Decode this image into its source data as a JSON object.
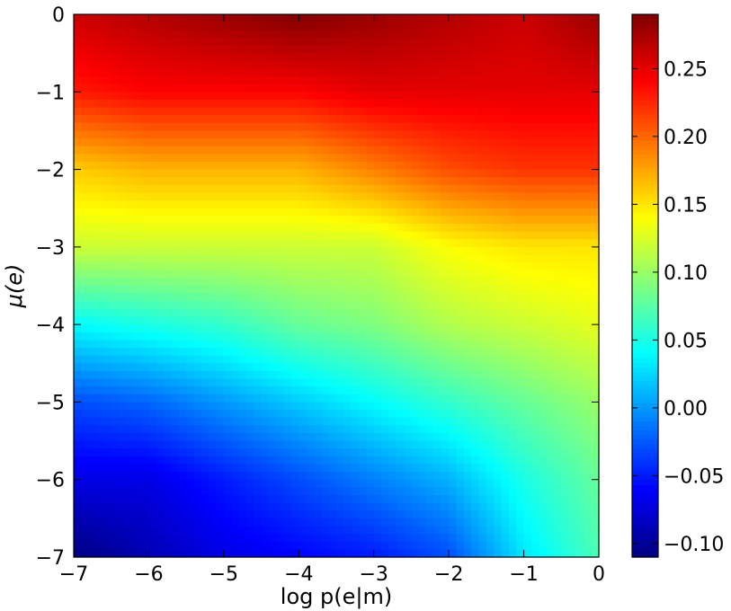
{
  "chart_data": {
    "type": "heatmap",
    "title": "",
    "xlabel": "log p(e|m)",
    "ylabel": "μ(e)",
    "xlim": [
      -7,
      0
    ],
    "ylim": [
      -7,
      0
    ],
    "x_ticks": [
      -7,
      -6,
      -5,
      -4,
      -3,
      -2,
      -1,
      0
    ],
    "y_ticks": [
      -7,
      -6,
      -5,
      -4,
      -3,
      -2,
      -1,
      0
    ],
    "x_tick_labels": [
      "−7",
      "−6",
      "−5",
      "−4",
      "−3",
      "−2",
      "−1",
      "0"
    ],
    "y_tick_labels": [
      "−7",
      "−6",
      "−5",
      "−4",
      "−3",
      "−2",
      "−1",
      "0"
    ],
    "colormap": "jet",
    "colorbar": {
      "range": [
        -0.11,
        0.29
      ],
      "ticks": [
        -0.1,
        -0.05,
        0.0,
        0.05,
        0.1,
        0.15,
        0.2,
        0.25
      ],
      "tick_labels": [
        "−0.10",
        "−0.05",
        "0.00",
        "0.05",
        "0.10",
        "0.15",
        "0.20",
        "0.25"
      ]
    },
    "x": [
      -7,
      -6,
      -5,
      -4,
      -3,
      -2,
      -1,
      0
    ],
    "y": [
      0,
      -1,
      -2,
      -3,
      -4,
      -5,
      -6,
      -7
    ],
    "z": [
      [
        0.26,
        0.27,
        0.28,
        0.29,
        0.28,
        0.27,
        0.26,
        0.28
      ],
      [
        0.23,
        0.24,
        0.24,
        0.24,
        0.25,
        0.25,
        0.25,
        0.25
      ],
      [
        0.16,
        0.17,
        0.17,
        0.17,
        0.19,
        0.21,
        0.22,
        0.22
      ],
      [
        0.12,
        0.12,
        0.12,
        0.12,
        0.12,
        0.14,
        0.15,
        0.15
      ],
      [
        0.04,
        0.05,
        0.06,
        0.08,
        0.09,
        0.11,
        0.12,
        0.13
      ],
      [
        -0.03,
        -0.02,
        0.0,
        0.02,
        0.04,
        0.06,
        0.08,
        0.1
      ],
      [
        -0.07,
        -0.07,
        -0.05,
        -0.03,
        -0.01,
        0.01,
        0.05,
        0.08
      ],
      [
        -0.11,
        -0.09,
        -0.07,
        -0.06,
        -0.05,
        -0.03,
        0.03,
        0.07
      ]
    ]
  }
}
